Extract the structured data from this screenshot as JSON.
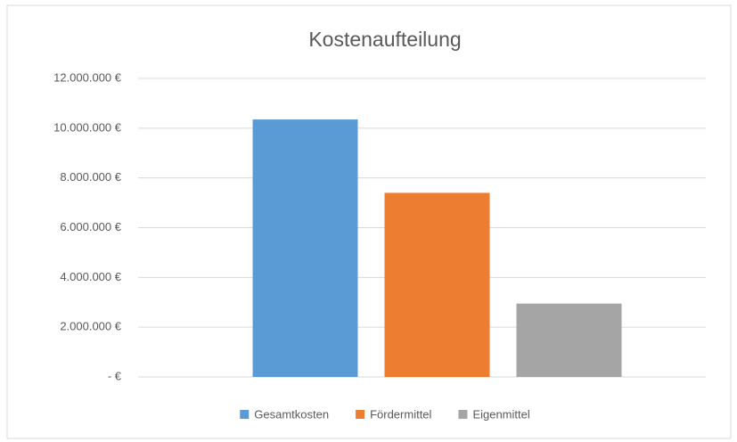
{
  "chart_data": {
    "type": "bar",
    "title": "Kostenaufteilung",
    "categories": [
      null
    ],
    "series": [
      {
        "name": "Gesamtkosten",
        "color": "#5b9bd5",
        "values": [
          10350000
        ]
      },
      {
        "name": "Fördermittel",
        "color": "#ed7d31",
        "values": [
          7400000
        ]
      },
      {
        "name": "Eigenmittel",
        "color": "#a5a5a5",
        "values": [
          2950000
        ]
      }
    ],
    "ylim": [
      0,
      12000000
    ],
    "yticks": [
      {
        "value": 0,
        "label": "-   €"
      },
      {
        "value": 2000000,
        "label": "2.000.000 €"
      },
      {
        "value": 4000000,
        "label": "4.000.000 €"
      },
      {
        "value": 6000000,
        "label": "6.000.000 €"
      },
      {
        "value": 8000000,
        "label": "8.000.000 €"
      },
      {
        "value": 10000000,
        "label": "10.000.000 €"
      },
      {
        "value": 12000000,
        "label": "12.000.000 €"
      }
    ],
    "grid": true,
    "legend": "bottom"
  }
}
